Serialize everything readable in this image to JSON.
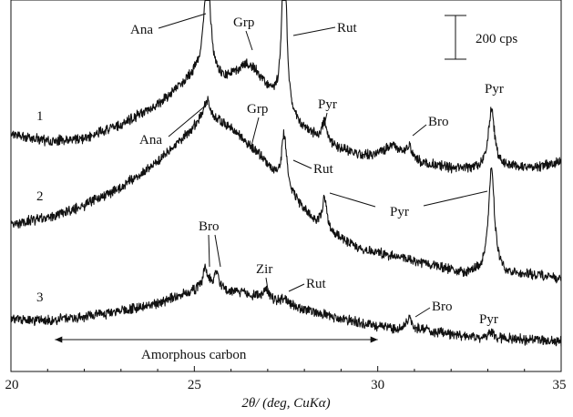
{
  "chart_data": {
    "type": "line",
    "xlabel": "2θ/ (deg, CuKα)",
    "ylabel": "",
    "xlim": [
      20,
      35
    ],
    "xticks": [
      {
        "value": 20,
        "label": "20"
      },
      {
        "value": 25,
        "label": "25"
      },
      {
        "value": 30,
        "label": "30"
      },
      {
        "value": 35,
        "label": "35"
      }
    ],
    "grid": false,
    "scale_bar": {
      "label": "200 cps",
      "value": 200
    },
    "range_annotation": {
      "label": "Amorphous carbon",
      "x_start": 21.2,
      "x_end": 30.0
    },
    "series": [
      {
        "name": "1",
        "baseline": 0,
        "background": [
          [
            20,
            148
          ],
          [
            21,
            155
          ],
          [
            22,
            152
          ],
          [
            23,
            137
          ],
          [
            24,
            116
          ],
          [
            24.6,
            96
          ],
          [
            25.1,
            80
          ],
          [
            25.8,
            88
          ],
          [
            26.4,
            78
          ],
          [
            27.0,
            100
          ],
          [
            27.8,
            138
          ],
          [
            28.6,
            158
          ],
          [
            29.6,
            172
          ],
          [
            30.4,
            168
          ],
          [
            31.2,
            180
          ],
          [
            32.2,
            186
          ],
          [
            33.4,
            184
          ],
          [
            34.3,
            184
          ],
          [
            35,
            178
          ]
        ],
        "peaks": [
          {
            "x": 25.35,
            "height": 120,
            "width": 0.1
          },
          {
            "x": 26.6,
            "height": 10,
            "width": 0.25
          },
          {
            "x": 27.45,
            "height": 200,
            "width": 0.07
          },
          {
            "x": 28.55,
            "height": 22,
            "width": 0.08
          },
          {
            "x": 30.45,
            "height": 8,
            "width": 0.3
          },
          {
            "x": 30.85,
            "height": 12,
            "width": 0.07
          },
          {
            "x": 33.1,
            "height": 64,
            "width": 0.1
          }
        ],
        "peak_labels": [
          {
            "text": "Ana",
            "x": 25.35
          },
          {
            "text": "Grp",
            "x": 26.6
          },
          {
            "text": "Rut",
            "x": 27.45
          },
          {
            "text": "Pyr",
            "x": 28.55
          },
          {
            "text": "Bro",
            "x": 30.85
          },
          {
            "text": "Pyr",
            "x": 33.1
          }
        ]
      },
      {
        "name": "2",
        "baseline": 0,
        "background": [
          [
            20,
            246
          ],
          [
            21,
            239
          ],
          [
            22,
            226
          ],
          [
            23,
            206
          ],
          [
            24,
            178
          ],
          [
            24.8,
            148
          ],
          [
            25.3,
            125
          ],
          [
            26.0,
            140
          ],
          [
            26.8,
            172
          ],
          [
            27.6,
            212
          ],
          [
            28.2,
            240
          ],
          [
            28.8,
            258
          ],
          [
            29.6,
            275
          ],
          [
            30.6,
            282
          ],
          [
            31.4,
            290
          ],
          [
            32.2,
            300
          ],
          [
            33.4,
            302
          ],
          [
            34.3,
            302
          ],
          [
            35,
            306
          ]
        ],
        "peaks": [
          {
            "x": 25.35,
            "height": 15,
            "width": 0.08
          },
          {
            "x": 27.45,
            "height": 58,
            "width": 0.08
          },
          {
            "x": 28.55,
            "height": 35,
            "width": 0.07
          },
          {
            "x": 33.1,
            "height": 117,
            "width": 0.1
          }
        ],
        "peak_labels": [
          {
            "text": "Ana",
            "x": 25.35
          },
          {
            "text": "Grp",
            "x": 26.6
          },
          {
            "text": "Rut",
            "x": 27.45
          },
          {
            "text": "Pyr",
            "x": 28.55
          },
          {
            "text": "Pyr",
            "x": 33.1
          }
        ]
      },
      {
        "name": "3",
        "baseline": 0,
        "background": [
          [
            20,
            350
          ],
          [
            21,
            352
          ],
          [
            22,
            348
          ],
          [
            23,
            342
          ],
          [
            24,
            333
          ],
          [
            24.8,
            322
          ],
          [
            25.4,
            315
          ],
          [
            26.0,
            320
          ],
          [
            27.2,
            330
          ],
          [
            28.2,
            342
          ],
          [
            29.2,
            352
          ],
          [
            30.2,
            360
          ],
          [
            31.2,
            362
          ],
          [
            32.5,
            370
          ],
          [
            33.6,
            372
          ],
          [
            35,
            375
          ]
        ],
        "peaks": [
          {
            "x": 25.3,
            "height": 22,
            "width": 0.08
          },
          {
            "x": 25.6,
            "height": 18,
            "width": 0.06
          },
          {
            "x": 26.95,
            "height": 10,
            "width": 0.07
          },
          {
            "x": 27.45,
            "height": 7,
            "width": 0.07
          },
          {
            "x": 30.85,
            "height": 12,
            "width": 0.07
          },
          {
            "x": 33.1,
            "height": 6,
            "width": 0.1
          }
        ],
        "peak_labels": [
          {
            "text": "Bro",
            "x": 25.5
          },
          {
            "text": "Zir",
            "x": 26.95
          },
          {
            "text": "Rut",
            "x": 27.45
          },
          {
            "text": "Bro",
            "x": 30.85
          },
          {
            "text": "Pyr",
            "x": 33.1
          }
        ]
      }
    ]
  }
}
